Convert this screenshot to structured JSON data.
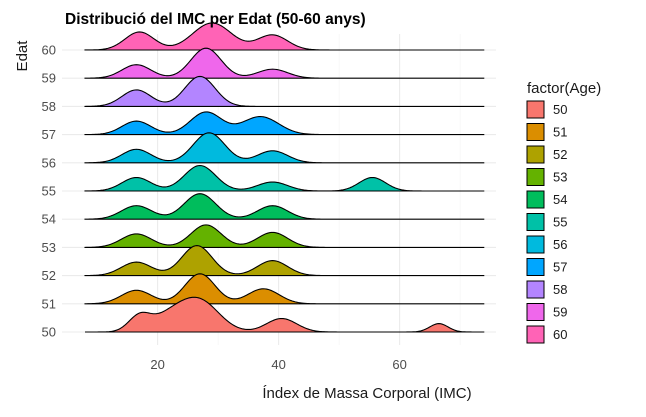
{
  "chart_data": {
    "type": "ridgeline",
    "title": "Distribució del IMC per Edat (50-60 anys)",
    "xlabel": "Índex de Massa Corporal (IMC)",
    "ylabel": "Edat",
    "xlim": [
      8,
      74
    ],
    "x_ticks": [
      20,
      40,
      60
    ],
    "grid": true,
    "legend": {
      "title": "factor(Age)",
      "position": "right"
    },
    "series": [
      {
        "name": "50",
        "color": "#F8766D",
        "peaks": [
          [
            17,
            1.8,
            0.5
          ],
          [
            22,
            3,
            0.5
          ],
          [
            27,
            3.2,
            1.0
          ],
          [
            40.5,
            2.5,
            0.45
          ],
          [
            66.5,
            1.5,
            0.28
          ]
        ]
      },
      {
        "name": "51",
        "color": "#DB8E00",
        "peaks": [
          [
            16.5,
            2.5,
            0.45
          ],
          [
            27,
            2.5,
            1.0
          ],
          [
            37.5,
            2.6,
            0.5
          ]
        ]
      },
      {
        "name": "52",
        "color": "#AEA200",
        "peaks": [
          [
            16.5,
            2.5,
            0.45
          ],
          [
            26.5,
            2.5,
            1.0
          ],
          [
            39,
            2.5,
            0.5
          ]
        ]
      },
      {
        "name": "53",
        "color": "#64B200",
        "peaks": [
          [
            16.5,
            2.5,
            0.45
          ],
          [
            28,
            2.5,
            0.75
          ],
          [
            39,
            2.5,
            0.5
          ]
        ]
      },
      {
        "name": "54",
        "color": "#00BD5C",
        "peaks": [
          [
            16.5,
            2.5,
            0.45
          ],
          [
            27,
            2.6,
            0.85
          ],
          [
            39,
            2.5,
            0.45
          ]
        ]
      },
      {
        "name": "55",
        "color": "#00C1A7",
        "peaks": [
          [
            16.5,
            2.4,
            0.45
          ],
          [
            27,
            2.6,
            0.85
          ],
          [
            39,
            2.5,
            0.3
          ],
          [
            55.5,
            2.2,
            0.45
          ]
        ]
      },
      {
        "name": "56",
        "color": "#00BADE",
        "peaks": [
          [
            16.5,
            2.4,
            0.45
          ],
          [
            28.5,
            2.6,
            1.0
          ],
          [
            39,
            2.5,
            0.4
          ]
        ]
      },
      {
        "name": "57",
        "color": "#00A6FF",
        "peaks": [
          [
            16.5,
            2.4,
            0.45
          ],
          [
            28,
            2.6,
            0.75
          ],
          [
            37,
            3.0,
            0.6
          ]
        ]
      },
      {
        "name": "58",
        "color": "#B385FF",
        "peaks": [
          [
            16.5,
            2.4,
            0.55
          ],
          [
            27,
            2.5,
            1.0
          ]
        ]
      },
      {
        "name": "59",
        "color": "#EF67EB",
        "peaks": [
          [
            16.5,
            2.4,
            0.45
          ],
          [
            28,
            2.5,
            1.0
          ],
          [
            39,
            2.5,
            0.3
          ]
        ]
      },
      {
        "name": "60",
        "color": "#FF63B6",
        "peaks": [
          [
            17,
            2.4,
            0.6
          ],
          [
            29,
            3.2,
            0.9
          ],
          [
            39,
            2.5,
            0.5
          ]
        ]
      }
    ]
  }
}
